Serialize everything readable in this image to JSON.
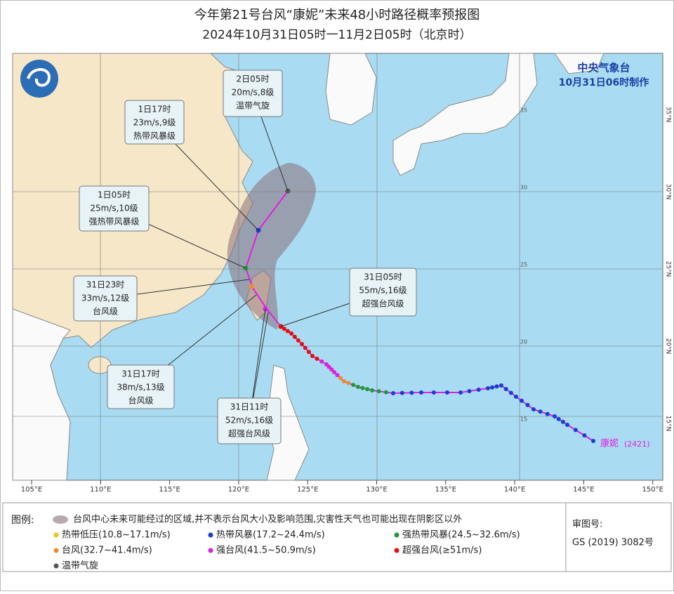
{
  "header": {
    "title": "今年第21号台风“康妮”未来48小时路径概率预报图",
    "subtitle": "2024年10月31日05时一11月2日05时（北京时）"
  },
  "agency": {
    "name": "中央气象台",
    "issued": "10月31日06时制作"
  },
  "map": {
    "typhoon_name": "康妮",
    "typhoon_code": "(2421)",
    "lon_labels": [
      "105°E",
      "110°E",
      "115°E",
      "120°E",
      "125°E",
      "130°E",
      "135°E",
      "140°E",
      "145°E",
      "150°E"
    ],
    "lat_labels": [
      "15°N",
      "20°N",
      "25°N",
      "30°N",
      "35°N"
    ],
    "grid_labels": [
      "15",
      "20",
      "25",
      "30",
      "35"
    ],
    "callouts": [
      {
        "lines": [
          "2日05时",
          "20m/s,8级",
          "温带气旋"
        ]
      },
      {
        "lines": [
          "1日17时",
          "23m/s,9级",
          "热带风暴级"
        ]
      },
      {
        "lines": [
          "1日05时",
          "25m/s,10级",
          "强热带风暴级"
        ]
      },
      {
        "lines": [
          "31日23时",
          "33m/s,12级",
          "台风级"
        ]
      },
      {
        "lines": [
          "31日17时",
          "38m/s,13级",
          "台风级"
        ]
      },
      {
        "lines": [
          "31日11时",
          "52m/s,16级",
          "超强台风级"
        ]
      },
      {
        "lines": [
          "31日05时",
          "55m/s,16级",
          "超强台风级"
        ]
      }
    ]
  },
  "legend": {
    "title": "图例:",
    "cone": "台风中心未来可能经过的区域,并不表示台风大小及影响范围,灾害性天气也可能出现在阴影区以外",
    "items": [
      "热带低压(10.8~17.1m/s)",
      "热带风暴(17.2~24.4m/s)",
      "强热带风暴(24.5~32.6m/s)",
      "台风(32.7~41.4m/s)",
      "强台风(41.5~50.9m/s)",
      "超强台风(≥51m/s)",
      "温带气旋"
    ]
  },
  "approval": {
    "label": "审图号:",
    "number": "GS (2019) 3082号"
  }
}
